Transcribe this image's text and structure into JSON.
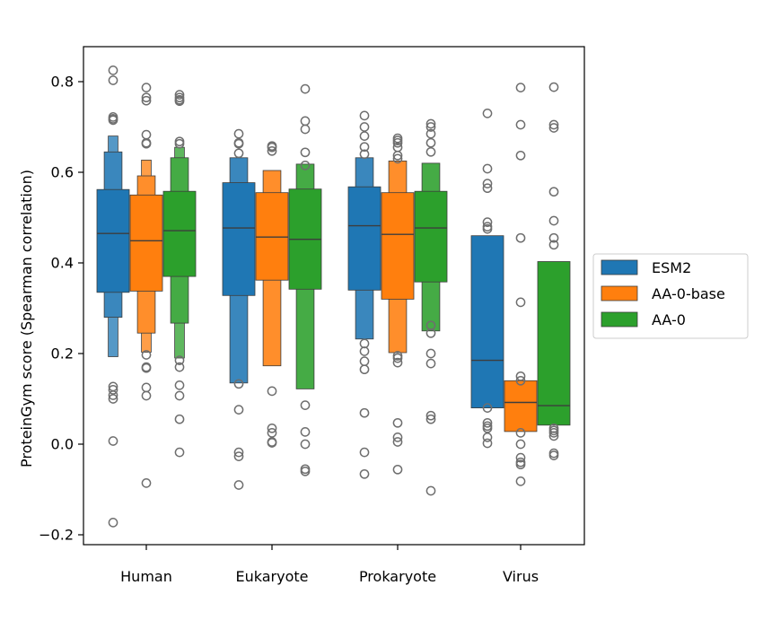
{
  "chart_data": {
    "type": "boxen",
    "title": "",
    "xlabel": "",
    "ylabel": "ProteinGym score (Spearman correlation)",
    "ylim": [
      -0.22,
      0.88
    ],
    "yticks": [
      -0.2,
      0.0,
      0.2,
      0.4,
      0.6,
      0.8
    ],
    "ytick_labels": [
      "−0.2",
      "0.0",
      "0.2",
      "0.4",
      "0.6",
      "0.8"
    ],
    "grid": false,
    "legend_position": "right",
    "categories": [
      "Human",
      "Eukaryote",
      "Prokaryote",
      "Virus"
    ],
    "colors": {
      "ESM2": "#1f77b4",
      "AA-0-base": "#ff7f0e",
      "AA-0": "#2ca02c"
    },
    "series": [
      {
        "name": "ESM2",
        "groups": [
          {
            "median": 0.465,
            "levels": [
              [
                0.335,
                0.562
              ],
              [
                0.28,
                0.645
              ],
              [
                0.193,
                0.68
              ]
            ],
            "outliers": [
              0.825,
              0.803,
              0.722,
              0.718,
              0.715,
              0.127,
              0.12,
              0.108,
              0.1,
              0.007,
              -0.173
            ]
          },
          {
            "median": 0.477,
            "levels": [
              [
                0.328,
                0.577
              ],
              [
                0.135,
                0.632
              ]
            ],
            "outliers": [
              0.685,
              0.665,
              0.663,
              0.642,
              0.133,
              0.076,
              -0.018,
              -0.027,
              -0.09
            ]
          },
          {
            "median": 0.482,
            "levels": [
              [
                0.34,
                0.568
              ],
              [
                0.232,
                0.632
              ]
            ],
            "outliers": [
              0.725,
              0.7,
              0.68,
              0.656,
              0.64,
              0.222,
              0.205,
              0.183,
              0.165,
              0.069,
              -0.018,
              -0.066
            ]
          },
          {
            "median": 0.185,
            "levels": [
              [
                0.08,
                0.46
              ]
            ],
            "outliers": [
              0.73,
              0.608,
              0.575,
              0.565,
              0.49,
              0.48,
              0.475,
              0.08,
              0.047,
              0.04,
              0.035,
              0.015,
              0.002
            ]
          }
        ]
      },
      {
        "name": "AA-0-base",
        "groups": [
          {
            "median": 0.449,
            "levels": [
              [
                0.338,
                0.55
              ],
              [
                0.245,
                0.592
              ],
              [
                0.203,
                0.627
              ]
            ],
            "outliers": [
              0.787,
              0.765,
              0.758,
              0.683,
              0.665,
              0.663,
              0.197,
              0.17,
              0.168,
              0.125,
              0.107,
              -0.086
            ]
          },
          {
            "median": 0.457,
            "levels": [
              [
                0.362,
                0.555
              ],
              [
                0.173,
                0.604
              ]
            ],
            "outliers": [
              0.658,
              0.655,
              0.647,
              0.117,
              0.035,
              0.025,
              0.005,
              0.003
            ]
          },
          {
            "median": 0.463,
            "levels": [
              [
                0.32,
                0.555
              ],
              [
                0.202,
                0.625
              ]
            ],
            "outliers": [
              0.675,
              0.67,
              0.665,
              0.655,
              0.637,
              0.63,
              0.195,
              0.19,
              0.18,
              0.047,
              0.015,
              0.005,
              -0.056
            ]
          },
          {
            "median": 0.092,
            "levels": [
              [
                0.028,
                0.14
              ]
            ],
            "outliers": [
              0.787,
              0.705,
              0.637,
              0.455,
              0.313,
              0.15,
              0.14,
              0.025,
              0.0,
              -0.03,
              -0.04,
              -0.045,
              -0.082
            ]
          }
        ]
      },
      {
        "name": "AA-0",
        "groups": [
          {
            "median": 0.471,
            "levels": [
              [
                0.37,
                0.558
              ],
              [
                0.267,
                0.632
              ],
              [
                0.19,
                0.655
              ]
            ],
            "outliers": [
              0.771,
              0.765,
              0.76,
              0.757,
              0.668,
              0.663,
              0.185,
              0.17,
              0.13,
              0.107,
              0.055,
              -0.018
            ]
          },
          {
            "median": 0.452,
            "levels": [
              [
                0.342,
                0.563
              ],
              [
                0.122,
                0.618
              ]
            ],
            "outliers": [
              0.784,
              0.713,
              0.695,
              0.644,
              0.615,
              0.086,
              0.027,
              0.0,
              -0.055,
              -0.06
            ]
          },
          {
            "median": 0.477,
            "levels": [
              [
                0.358,
                0.558
              ],
              [
                0.25,
                0.62
              ]
            ],
            "outliers": [
              0.707,
              0.7,
              0.685,
              0.665,
              0.645,
              0.262,
              0.245,
              0.2,
              0.178,
              0.063,
              0.055,
              -0.103
            ]
          },
          {
            "median": 0.085,
            "levels": [
              [
                0.042,
                0.403
              ]
            ],
            "outliers": [
              0.788,
              0.705,
              0.698,
              0.557,
              0.493,
              0.455,
              0.44,
              0.035,
              0.03,
              0.025,
              0.018,
              -0.02,
              -0.025
            ]
          }
        ]
      }
    ]
  }
}
